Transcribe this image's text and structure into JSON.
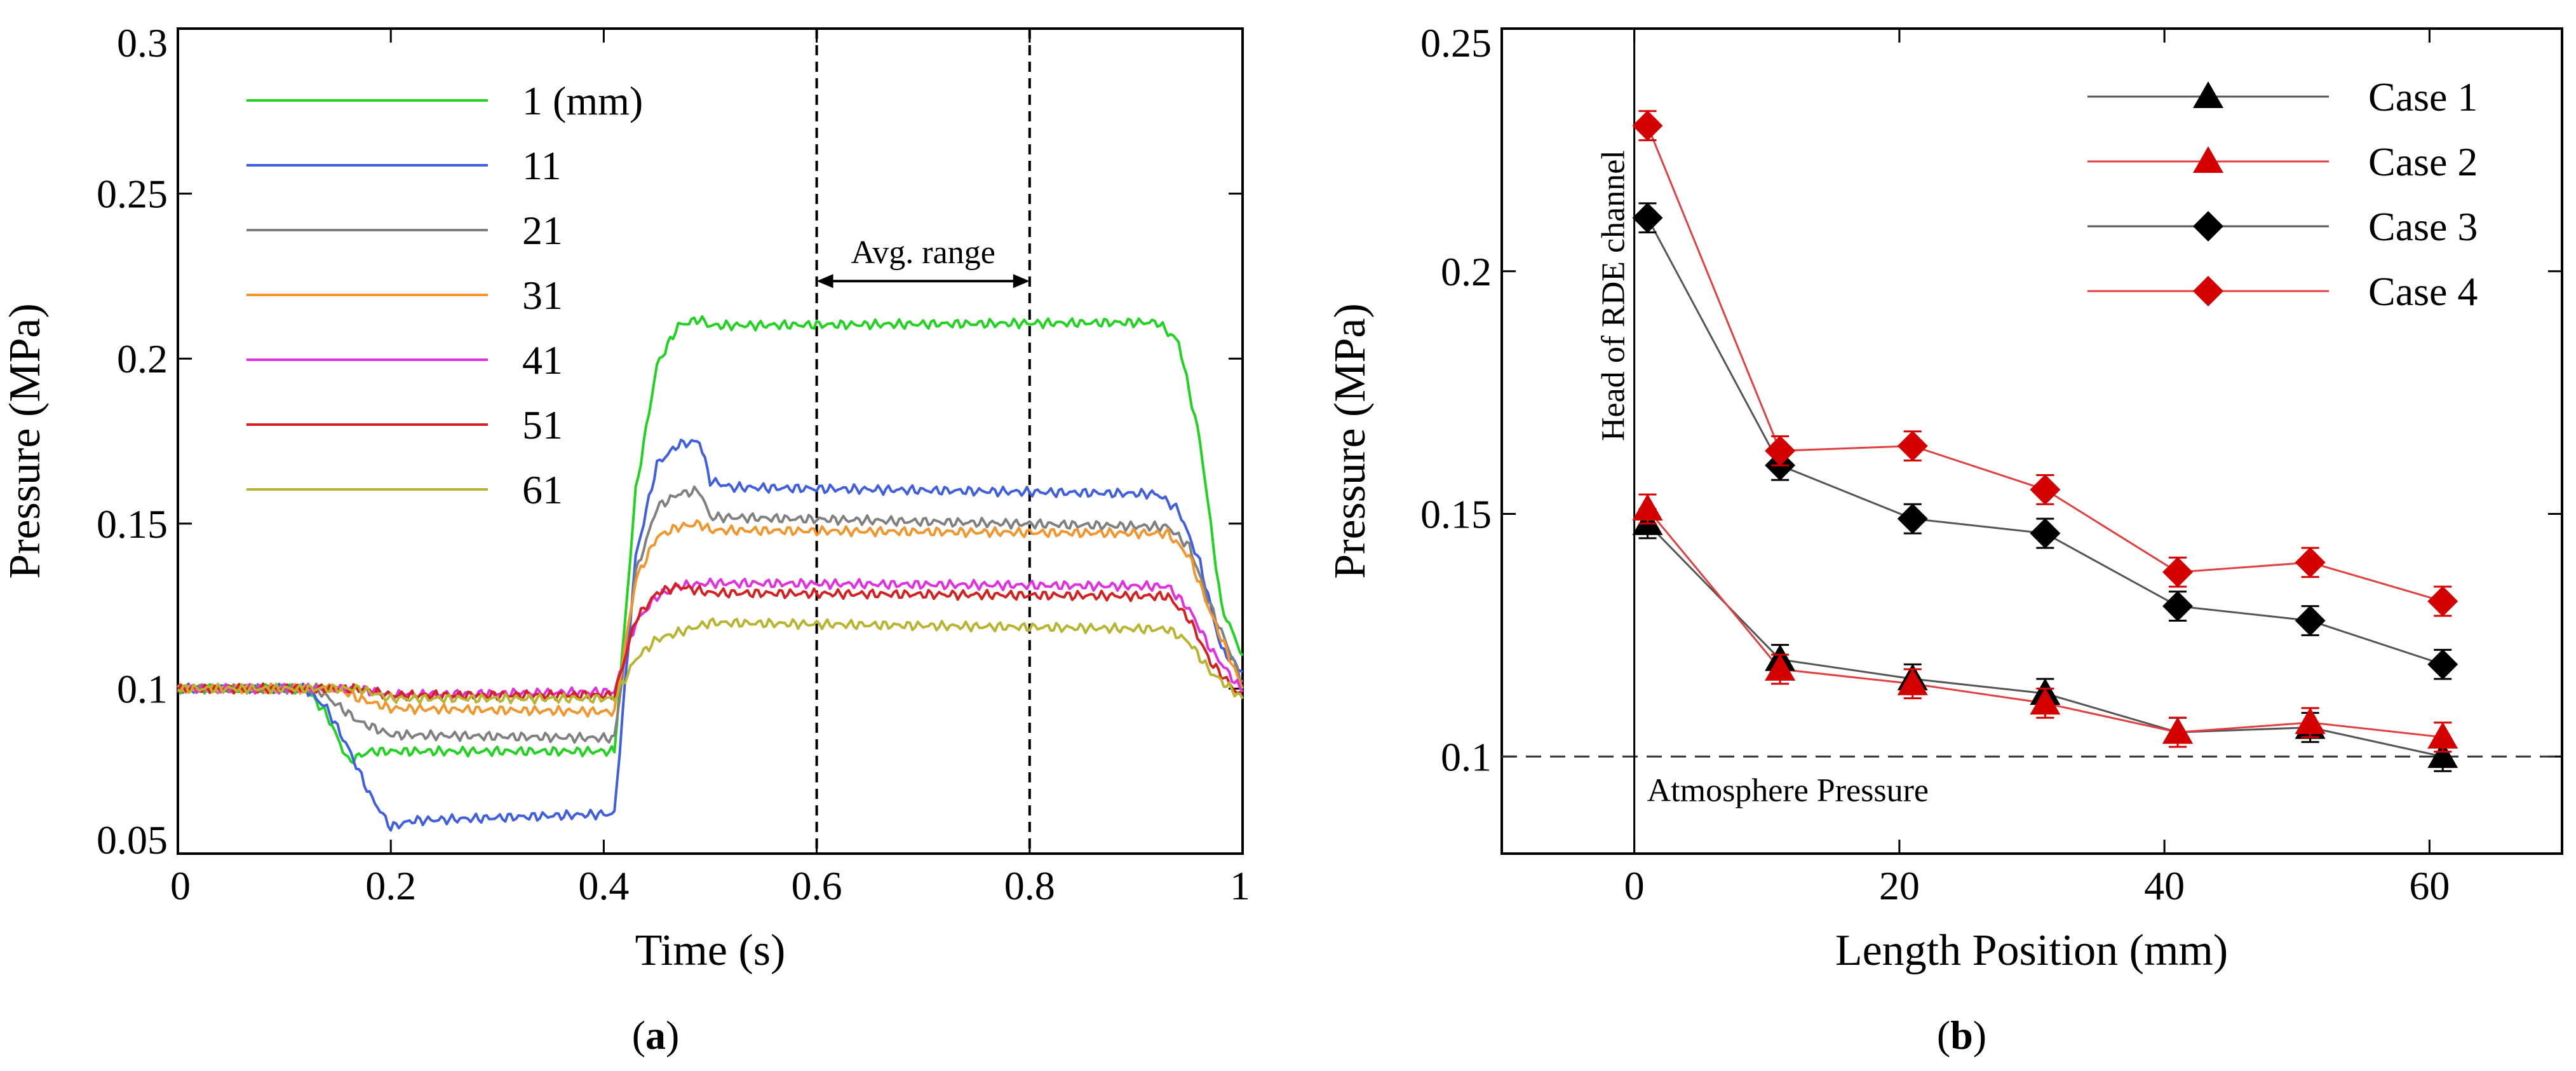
{
  "chart_data": [
    {
      "id": "a",
      "type": "line",
      "xlabel": "Time (s)",
      "ylabel": "Pressure (MPa)",
      "xlim": [
        0,
        1
      ],
      "ylim": [
        0.05,
        0.3
      ],
      "xticks": [
        0,
        0.2,
        0.4,
        0.6,
        0.8,
        1
      ],
      "xtick_labels": [
        "0",
        "0.2",
        "0.4",
        "0.6",
        "0.8",
        "1"
      ],
      "yticks": [
        0.05,
        0.1,
        0.15,
        0.2,
        0.25,
        0.3
      ],
      "ytick_labels": [
        "0.05",
        "0.1",
        "0.15",
        "0.2",
        "0.25",
        "0.3"
      ],
      "legend_position": "top-left",
      "vlines": [
        0.6,
        0.8
      ],
      "annotation": {
        "text": "Avg. range",
        "x_from": 0.6,
        "x_to": 0.8,
        "y": 0.2235
      },
      "series": [
        {
          "name": "1 (mm)",
          "color": "#21d321",
          "points": [
            [
              0,
              0.1
            ],
            [
              0.12,
              0.1
            ],
            [
              0.14,
              0.092
            ],
            [
              0.16,
              0.078
            ],
            [
              0.18,
              0.081
            ],
            [
              0.4,
              0.081
            ],
            [
              0.41,
              0.081
            ],
            [
              0.43,
              0.16
            ],
            [
              0.45,
              0.198
            ],
            [
              0.47,
              0.21
            ],
            [
              0.49,
              0.212
            ],
            [
              0.5,
              0.21
            ],
            [
              0.92,
              0.211
            ],
            [
              0.94,
              0.205
            ],
            [
              0.96,
              0.175
            ],
            [
              0.98,
              0.125
            ],
            [
              1,
              0.11
            ]
          ]
        },
        {
          "name": "11",
          "color": "#3f5fe0",
          "points": [
            [
              0,
              0.1
            ],
            [
              0.12,
              0.1
            ],
            [
              0.14,
              0.094
            ],
            [
              0.16,
              0.082
            ],
            [
              0.18,
              0.068
            ],
            [
              0.2,
              0.058
            ],
            [
              0.22,
              0.06
            ],
            [
              0.4,
              0.062
            ],
            [
              0.41,
              0.062
            ],
            [
              0.43,
              0.14
            ],
            [
              0.45,
              0.168
            ],
            [
              0.47,
              0.174
            ],
            [
              0.49,
              0.175
            ],
            [
              0.5,
              0.163
            ],
            [
              0.52,
              0.161
            ],
            [
              0.92,
              0.159
            ],
            [
              0.94,
              0.154
            ],
            [
              0.96,
              0.138
            ],
            [
              0.98,
              0.112
            ],
            [
              1,
              0.105
            ]
          ]
        },
        {
          "name": "21",
          "color": "#808080",
          "points": [
            [
              0,
              0.1
            ],
            [
              0.13,
              0.1
            ],
            [
              0.15,
              0.095
            ],
            [
              0.17,
              0.09
            ],
            [
              0.2,
              0.086
            ],
            [
              0.4,
              0.085
            ],
            [
              0.41,
              0.085
            ],
            [
              0.43,
              0.135
            ],
            [
              0.45,
              0.155
            ],
            [
              0.47,
              0.159
            ],
            [
              0.49,
              0.16
            ],
            [
              0.5,
              0.152
            ],
            [
              0.93,
              0.149
            ],
            [
              0.95,
              0.143
            ],
            [
              0.97,
              0.125
            ],
            [
              1,
              0.102
            ]
          ]
        },
        {
          "name": "31",
          "color": "#f0962d",
          "points": [
            [
              0,
              0.1
            ],
            [
              0.15,
              0.1
            ],
            [
              0.17,
              0.097
            ],
            [
              0.2,
              0.094
            ],
            [
              0.4,
              0.093
            ],
            [
              0.41,
              0.093
            ],
            [
              0.43,
              0.133
            ],
            [
              0.45,
              0.146
            ],
            [
              0.47,
              0.149
            ],
            [
              0.49,
              0.15
            ],
            [
              0.5,
              0.148
            ],
            [
              0.93,
              0.147
            ],
            [
              0.95,
              0.14
            ],
            [
              0.97,
              0.123
            ],
            [
              1,
              0.1
            ]
          ]
        },
        {
          "name": "41",
          "color": "#e030e0",
          "points": [
            [
              0,
              0.1
            ],
            [
              0.17,
              0.1
            ],
            [
              0.2,
              0.098
            ],
            [
              0.4,
              0.099
            ],
            [
              0.41,
              0.099
            ],
            [
              0.43,
              0.12
            ],
            [
              0.45,
              0.128
            ],
            [
              0.47,
              0.131
            ],
            [
              0.5,
              0.132
            ],
            [
              0.93,
              0.131
            ],
            [
              0.95,
              0.124
            ],
            [
              0.97,
              0.112
            ],
            [
              1,
              0.099
            ]
          ]
        },
        {
          "name": "51",
          "color": "#d42020",
          "points": [
            [
              0,
              0.1
            ],
            [
              0.17,
              0.1
            ],
            [
              0.2,
              0.098
            ],
            [
              0.4,
              0.098
            ],
            [
              0.41,
              0.098
            ],
            [
              0.43,
              0.121
            ],
            [
              0.45,
              0.129
            ],
            [
              0.47,
              0.131
            ],
            [
              0.5,
              0.129
            ],
            [
              0.93,
              0.128
            ],
            [
              0.95,
              0.121
            ],
            [
              0.97,
              0.108
            ],
            [
              1,
              0.097
            ]
          ]
        },
        {
          "name": "61",
          "color": "#b8b430",
          "points": [
            [
              0,
              0.1
            ],
            [
              0.17,
              0.1
            ],
            [
              0.2,
              0.097
            ],
            [
              0.4,
              0.097
            ],
            [
              0.41,
              0.097
            ],
            [
              0.43,
              0.109
            ],
            [
              0.45,
              0.115
            ],
            [
              0.48,
              0.118
            ],
            [
              0.5,
              0.12
            ],
            [
              0.93,
              0.118
            ],
            [
              0.95,
              0.114
            ],
            [
              0.97,
              0.105
            ],
            [
              1,
              0.097
            ]
          ]
        }
      ]
    },
    {
      "id": "b",
      "type": "line",
      "xlabel": "Length Position (mm)",
      "ylabel": "Pressure (MPa)",
      "xlim": [
        -10,
        70
      ],
      "ylim": [
        0.08,
        0.25
      ],
      "xticks": [
        0,
        20,
        40,
        60
      ],
      "xtick_labels": [
        "0",
        "20",
        "40",
        "60"
      ],
      "yticks": [
        0.1,
        0.15,
        0.2,
        0.25
      ],
      "ytick_labels": [
        "0.1",
        "0.15",
        "0.2",
        "0.25"
      ],
      "legend_position": "top-right",
      "reference_line": {
        "y": 0.1,
        "label": "Atmosphere Pressure"
      },
      "vertical_marker": {
        "x": 0,
        "label": "Head of RDE channel"
      },
      "series": [
        {
          "name": "Case 1",
          "color": "#000000",
          "line_color": "#555555",
          "marker": "triangle",
          "x": [
            1,
            11,
            21,
            31,
            41,
            51,
            61
          ],
          "y": [
            0.148,
            0.12,
            0.116,
            0.113,
            0.105,
            0.106,
            0.1
          ],
          "error": 0.003
        },
        {
          "name": "Case 2",
          "color": "#d40000",
          "line_color": "#e04040",
          "marker": "triangle",
          "x": [
            1,
            11,
            21,
            31,
            41,
            51,
            61
          ],
          "y": [
            0.151,
            0.118,
            0.115,
            0.111,
            0.105,
            0.107,
            0.104
          ],
          "error": 0.003
        },
        {
          "name": "Case 3",
          "color": "#000000",
          "line_color": "#555555",
          "marker": "diamond",
          "x": [
            1,
            11,
            21,
            31,
            41,
            51,
            61
          ],
          "y": [
            0.211,
            0.16,
            0.149,
            0.146,
            0.131,
            0.128,
            0.119
          ],
          "error": 0.003
        },
        {
          "name": "Case 4",
          "color": "#d40000",
          "line_color": "#e04040",
          "marker": "diamond",
          "x": [
            1,
            11,
            21,
            31,
            41,
            51,
            61
          ],
          "y": [
            0.23,
            0.163,
            0.164,
            0.155,
            0.138,
            0.14,
            0.132
          ],
          "error": 0.003
        }
      ]
    }
  ],
  "captions": {
    "a": {
      "open": "(",
      "letter": "a",
      "close": ")"
    },
    "b": {
      "open": "(",
      "letter": "b",
      "close": ")"
    }
  }
}
